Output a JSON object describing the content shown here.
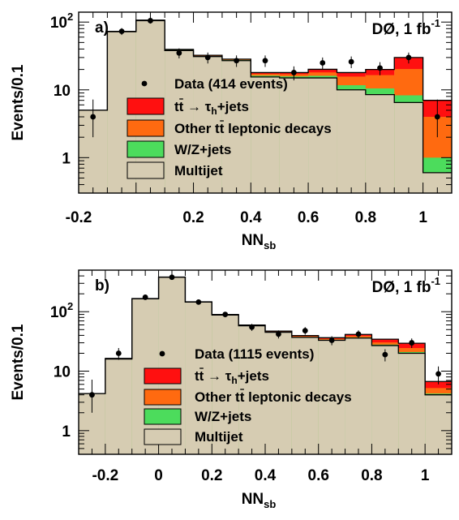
{
  "colors": {
    "multijet": "#d6ccb2",
    "wz_jets": "#4cdc5c",
    "other_ttbar": "#ff6a10",
    "ttbar_tau": "#ff1010",
    "data": "#000000"
  },
  "chart_data": [
    {
      "type": "histogram",
      "panel_label": "a)",
      "experiment_label": "DØ, 1 fb",
      "experiment_label_sup": "-1",
      "xlabel": "NN",
      "xlabel_sub": "sb",
      "ylabel": "Events/0.1",
      "xlim": [
        -0.2,
        1.1
      ],
      "ylim": [
        0.3,
        140
      ],
      "yscale": "log",
      "xticks": [
        {
          "value": -0.2,
          "label": "-0.2"
        },
        {
          "value": 0.2,
          "label": "0.2"
        },
        {
          "value": 0.4,
          "label": "0.4"
        },
        {
          "value": 0.6,
          "label": "0.6"
        },
        {
          "value": 0.8,
          "label": "0.8"
        },
        {
          "value": 1.0,
          "label": "1"
        }
      ],
      "yticks": [
        {
          "value": 1,
          "label": "1"
        },
        {
          "value": 10,
          "label": "10"
        },
        {
          "value": 100,
          "label": "10",
          "sup": "2"
        }
      ],
      "bin_edges": [
        -0.2,
        -0.1,
        0.0,
        0.1,
        0.2,
        0.3,
        0.4,
        0.5,
        0.6,
        0.7,
        0.8,
        0.9,
        1.0,
        1.1
      ],
      "stack": [
        {
          "key": "multijet",
          "name": "Multijet",
          "values": [
            5,
            72,
            105,
            38,
            31,
            27,
            15.5,
            15,
            15,
            10,
            8.5,
            6.5,
            0.6
          ]
        },
        {
          "key": "wz_jets",
          "name": "W/Z+jets",
          "values": [
            0,
            0.5,
            1,
            0.7,
            0.6,
            0.6,
            0.7,
            0.8,
            1.1,
            1.7,
            2,
            1.8,
            0.4
          ]
        },
        {
          "key": "other_ttbar",
          "name": "Other tt̄ leptonic decays",
          "values": [
            0,
            0.3,
            0.5,
            0.5,
            0.5,
            0.5,
            1,
            1.2,
            2,
            4,
            6,
            12,
            3
          ]
        },
        {
          "key": "ttbar_tau",
          "name": "tt̄ → τ_h+jets",
          "values": [
            0,
            0.2,
            0.3,
            0.3,
            0.3,
            0.3,
            0.8,
            1,
            2,
            2.3,
            3.5,
            9.7,
            3
          ]
        }
      ],
      "data": {
        "name": "Data (414 events)",
        "x": [
          -0.15,
          -0.05,
          0.05,
          0.15,
          0.25,
          0.35,
          0.45,
          0.55,
          0.65,
          0.75,
          0.85,
          0.95,
          1.05
        ],
        "y": [
          4,
          73,
          105,
          35,
          30,
          27,
          27,
          18,
          25,
          26,
          21,
          30,
          4
        ],
        "err_lo": [
          2,
          8.5,
          10,
          5.9,
          5.5,
          5.2,
          5.2,
          4.2,
          5,
          5.1,
          4.6,
          5.5,
          2
        ],
        "err_hi": [
          3.2,
          8.5,
          10,
          5.9,
          5.5,
          5.2,
          5.2,
          4.2,
          5,
          5.1,
          4.6,
          5.5,
          3.2
        ]
      },
      "legend": {
        "data_label": "Data (414 events)",
        "entries": [
          {
            "key": "ttbar_tau",
            "label_main": "tt",
            "label_rest": " → τ",
            "label_sub": "h",
            "label_end": "+jets",
            "bar": true
          },
          {
            "key": "other_ttbar",
            "label_main": "Other tt",
            "label_rest": " leptonic decays",
            "bar": true
          },
          {
            "key": "wz_jets",
            "label_main": "W/Z+jets"
          },
          {
            "key": "multijet",
            "label_main": "Multijet"
          }
        ]
      }
    },
    {
      "type": "histogram",
      "panel_label": "b)",
      "experiment_label": "DØ, 1 fb",
      "experiment_label_sup": "-1",
      "xlabel": "NN",
      "xlabel_sub": "sb",
      "ylabel": "Events/0.1",
      "xlim": [
        -0.3,
        1.1
      ],
      "ylim": [
        0.4,
        500
      ],
      "yscale": "log",
      "xticks": [
        {
          "value": -0.2,
          "label": "-0.2"
        },
        {
          "value": 0.0,
          "label": "0"
        },
        {
          "value": 0.2,
          "label": "0.2"
        },
        {
          "value": 0.4,
          "label": "0.4"
        },
        {
          "value": 0.6,
          "label": "0.6"
        },
        {
          "value": 0.8,
          "label": "0.8"
        },
        {
          "value": 1.0,
          "label": "1"
        }
      ],
      "yticks": [
        {
          "value": 1,
          "label": "1"
        },
        {
          "value": 10,
          "label": "10"
        },
        {
          "value": 100,
          "label": "10",
          "sup": "2"
        }
      ],
      "bin_edges": [
        -0.3,
        -0.2,
        -0.1,
        0.0,
        0.1,
        0.2,
        0.3,
        0.4,
        0.5,
        0.6,
        0.7,
        0.8,
        0.9,
        1.0,
        1.1
      ],
      "stack": [
        {
          "key": "multijet",
          "name": "Multijet",
          "values": [
            4.2,
            16,
            165,
            380,
            145,
            88,
            58,
            45,
            37,
            33,
            36,
            27,
            20,
            4
          ]
        },
        {
          "key": "wz_jets",
          "name": "W/Z+jets",
          "values": [
            0,
            0.2,
            0.6,
            1,
            0.7,
            0.7,
            0.6,
            0.6,
            0.7,
            0.8,
            1,
            1,
            1,
            0.2
          ]
        },
        {
          "key": "other_ttbar",
          "name": "Other tt̄ leptonic decays",
          "values": [
            0,
            0.1,
            0.4,
            0.6,
            0.6,
            0.6,
            0.6,
            0.8,
            1,
            1.2,
            2,
            2.5,
            3.5,
            1
          ]
        },
        {
          "key": "ttbar_tau",
          "name": "tt̄ → τ_h+jets",
          "values": [
            0,
            0.1,
            0.3,
            0.5,
            0.5,
            0.5,
            0.5,
            0.7,
            1,
            1.5,
            2.5,
            4,
            5,
            1.5
          ]
        }
      ],
      "data": {
        "name": "Data (1115 events)",
        "x": [
          -0.25,
          -0.15,
          -0.05,
          0.05,
          0.15,
          0.25,
          0.35,
          0.45,
          0.55,
          0.65,
          0.75,
          0.85,
          0.95,
          1.05
        ],
        "y": [
          4,
          20,
          175,
          380,
          145,
          90,
          55,
          42,
          48,
          33,
          42,
          19,
          30,
          9
        ],
        "err_lo": [
          2,
          4.5,
          13,
          19.5,
          12,
          9.5,
          7.4,
          6.5,
          6.9,
          5.7,
          6.5,
          4.4,
          5.5,
          3
        ],
        "err_hi": [
          3.2,
          4.5,
          13,
          19.5,
          12,
          9.5,
          7.4,
          6.5,
          6.9,
          5.7,
          6.5,
          4.4,
          5.5,
          3
        ]
      },
      "legend": {
        "data_label": "Data (1115 events)",
        "entries": [
          {
            "key": "ttbar_tau",
            "label_main": "tt",
            "label_rest": " → τ",
            "label_sub": "h",
            "label_end": "+jets",
            "bar": true
          },
          {
            "key": "other_ttbar",
            "label_main": "Other tt",
            "label_rest": " leptonic decays",
            "bar": true
          },
          {
            "key": "wz_jets",
            "label_main": "W/Z+jets"
          },
          {
            "key": "multijet",
            "label_main": "Multijet"
          }
        ]
      }
    }
  ]
}
